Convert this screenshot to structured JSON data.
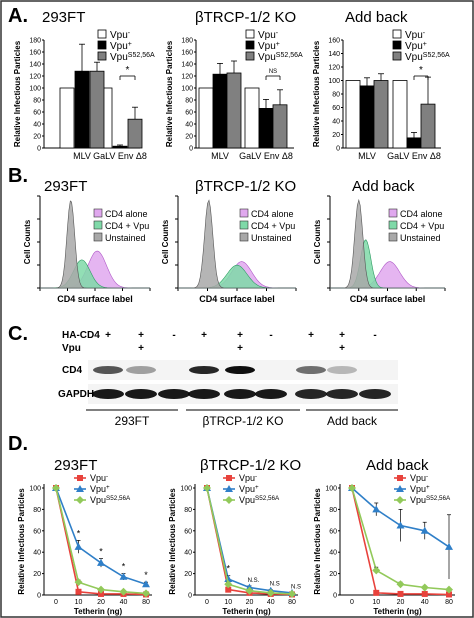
{
  "panel_labels": [
    "A.",
    "B.",
    "C.",
    "D."
  ],
  "conditions": [
    "293FT",
    "βTRCP-1/2 KO",
    "Add back"
  ],
  "colors": {
    "vpu_minus_bar": "#ffffff",
    "vpu_plus_bar": "#000000",
    "vpu_s52_bar": "#808080",
    "cd4_alone": "#e0a8ee",
    "cd4_vpu": "#7fd9a8",
    "unstained": "#a8a8a8",
    "line_vpu_minus": "#e8423c",
    "line_vpu_plus": "#2f7fc8",
    "line_vpu_s52": "#92c95a"
  },
  "blot": {
    "rows": [
      {
        "label": "HA-CD4",
        "marks": [
          "+",
          "+",
          "-",
          "+",
          "+",
          "-",
          "+",
          "+",
          "-"
        ]
      },
      {
        "label": "Vpu",
        "marks": [
          "",
          "+",
          "",
          "",
          "+",
          "",
          "",
          "+",
          ""
        ]
      }
    ],
    "band_labels": [
      "CD4",
      "GAPDH"
    ],
    "group_labels": [
      "293FT",
      "βTRCP-1/2 KO",
      "Add back"
    ],
    "cd4_intensity": [
      0.65,
      0.35,
      0.0,
      0.85,
      0.95,
      0.0,
      0.55,
      0.25,
      0.0
    ],
    "gapdh_intensity": [
      0.9,
      0.9,
      0.9,
      0.9,
      0.9,
      0.9,
      0.85,
      0.85,
      0.85
    ]
  },
  "chart_data": [
    {
      "panel": "A",
      "type": "bar",
      "title": "293FT",
      "categories": [
        "MLV",
        "GaLV Env Δ8"
      ],
      "ylabel": "Relative Infectious Particles",
      "ylim": [
        0,
        180
      ],
      "yticks": [
        0,
        20,
        40,
        60,
        80,
        100,
        120,
        140,
        160,
        180
      ],
      "series": [
        {
          "name": "Vpu-",
          "values": [
            100,
            100
          ],
          "errors": [
            0,
            0
          ]
        },
        {
          "name": "Vpu+",
          "values": [
            128,
            3
          ],
          "errors": [
            45,
            2
          ]
        },
        {
          "name": "VpuS52,56A",
          "values": [
            128,
            48
          ],
          "errors": [
            15,
            20
          ]
        }
      ],
      "significance": "*",
      "legend": [
        "Vpu-",
        "Vpu+",
        "VpuS52,56A"
      ]
    },
    {
      "panel": "A",
      "type": "bar",
      "title": "βTRCP-1/2 KO",
      "categories": [
        "MLV",
        "GaLV Env Δ8"
      ],
      "ylabel": "Relative Infectious Particles",
      "ylim": [
        0,
        180
      ],
      "yticks": [
        0,
        20,
        40,
        60,
        80,
        100,
        120,
        140,
        160,
        180
      ],
      "series": [
        {
          "name": "Vpu-",
          "values": [
            100,
            100
          ],
          "errors": [
            0,
            0
          ]
        },
        {
          "name": "Vpu+",
          "values": [
            123,
            66
          ],
          "errors": [
            18,
            15
          ]
        },
        {
          "name": "VpuS52,56A",
          "values": [
            125,
            72
          ],
          "errors": [
            20,
            25
          ]
        }
      ],
      "significance": "NS",
      "legend": [
        "Vpu-",
        "Vpu+",
        "VpuS52,56A"
      ]
    },
    {
      "panel": "A",
      "type": "bar",
      "title": "Add back",
      "categories": [
        "MLV",
        "GaLV Env Δ8"
      ],
      "ylabel": "Relative Infectious Particles",
      "ylim": [
        0,
        160
      ],
      "yticks": [
        0,
        20,
        40,
        60,
        80,
        100,
        120,
        140,
        160
      ],
      "series": [
        {
          "name": "Vpu-",
          "values": [
            100,
            100
          ],
          "errors": [
            0,
            0
          ]
        },
        {
          "name": "Vpu+",
          "values": [
            92,
            15
          ],
          "errors": [
            12,
            8
          ]
        },
        {
          "name": "VpuS52,56A",
          "values": [
            100,
            65
          ],
          "errors": [
            10,
            40
          ]
        }
      ],
      "significance": "*",
      "legend": [
        "Vpu-",
        "Vpu+",
        "VpuS52,56A"
      ]
    },
    {
      "panel": "B",
      "type": "area",
      "title": "293FT",
      "xlabel": "CD4 surface label",
      "ylabel": "Cell Counts",
      "legend": [
        "CD4 alone",
        "CD4 + Vpu",
        "Unstained"
      ],
      "peaks": [
        {
          "name": "Unstained",
          "center": 0.28,
          "width": 0.035,
          "height": 1.0
        },
        {
          "name": "CD4 + Vpu",
          "center": 0.38,
          "width": 0.075,
          "height": 0.32
        },
        {
          "name": "CD4 alone",
          "center": 0.52,
          "width": 0.085,
          "height": 0.42
        }
      ]
    },
    {
      "panel": "B",
      "type": "area",
      "title": "βTRCP-1/2 KO",
      "xlabel": "CD4 surface label",
      "ylabel": "Cell Counts",
      "legend": [
        "CD4 alone",
        "CD4 + Vpu",
        "Unstained"
      ],
      "peaks": [
        {
          "name": "Unstained",
          "center": 0.26,
          "width": 0.035,
          "height": 1.0
        },
        {
          "name": "CD4 + Vpu",
          "center": 0.5,
          "width": 0.085,
          "height": 0.26
        },
        {
          "name": "CD4 alone",
          "center": 0.54,
          "width": 0.085,
          "height": 0.3
        }
      ]
    },
    {
      "panel": "B",
      "type": "area",
      "title": "Add back",
      "xlabel": "CD4 surface label",
      "ylabel": "Cell Counts",
      "legend": [
        "CD4 alone",
        "CD4 + Vpu",
        "Unstained"
      ],
      "peaks": [
        {
          "name": "Unstained",
          "center": 0.25,
          "width": 0.035,
          "height": 1.0
        },
        {
          "name": "CD4 + Vpu",
          "center": 0.31,
          "width": 0.045,
          "height": 0.55
        },
        {
          "name": "CD4 alone",
          "center": 0.52,
          "width": 0.085,
          "height": 0.3
        }
      ]
    },
    {
      "panel": "D",
      "type": "line",
      "title": "293FT",
      "x": [
        0,
        10,
        20,
        40,
        80
      ],
      "xticks": [
        "0",
        "10",
        "20",
        "40",
        "80"
      ],
      "xlabel": "Tetherin (ng)",
      "ylabel": "Relative Infectious Particles",
      "ylim": [
        0,
        100
      ],
      "yticks": [
        0,
        20,
        40,
        60,
        80,
        100
      ],
      "series": [
        {
          "name": "Vpu-",
          "values": [
            100,
            3,
            1,
            1,
            0.5
          ],
          "errors": [
            0,
            1,
            0.5,
            0.5,
            0.3
          ]
        },
        {
          "name": "Vpu+",
          "values": [
            100,
            45,
            30,
            17,
            10
          ],
          "errors": [
            0,
            6,
            4,
            3,
            2
          ]
        },
        {
          "name": "VpuS52,56A",
          "values": [
            100,
            12,
            5,
            3,
            1.5
          ],
          "errors": [
            0,
            2,
            1,
            1,
            0.5
          ]
        }
      ],
      "annotations": [
        "*",
        "*",
        "*",
        "*"
      ],
      "legend": [
        "Vpu-",
        "Vpu+",
        "VpuS52,56A"
      ]
    },
    {
      "panel": "D",
      "type": "line",
      "title": "βTRCP-1/2 KO",
      "x": [
        0,
        10,
        20,
        40,
        80
      ],
      "xticks": [
        "0",
        "10",
        "20",
        "40",
        "80"
      ],
      "xlabel": "Tetherin (ng)",
      "ylabel": "Relative Infectious Particles",
      "ylim": [
        0,
        100
      ],
      "yticks": [
        0,
        20,
        40,
        60,
        80,
        100
      ],
      "series": [
        {
          "name": "Vpu-",
          "values": [
            100,
            5,
            2,
            1,
            0.5
          ],
          "errors": [
            0,
            1,
            0.5,
            0.5,
            0.3
          ]
        },
        {
          "name": "Vpu+",
          "values": [
            100,
            15,
            7,
            4,
            2
          ],
          "errors": [
            0,
            3,
            1.5,
            1,
            0.5
          ]
        },
        {
          "name": "VpuS52,56A",
          "values": [
            100,
            10,
            4,
            2,
            1
          ],
          "errors": [
            0,
            2,
            1,
            0.5,
            0.3
          ]
        }
      ],
      "annotations": [
        "*",
        "N.S.",
        "N.S",
        "N.S"
      ],
      "legend": [
        "Vpu-",
        "Vpu+",
        "VpuS52,56A"
      ]
    },
    {
      "panel": "D",
      "type": "line",
      "title": "Add back",
      "x": [
        0,
        10,
        20,
        40,
        80
      ],
      "xticks": [
        "0",
        "10",
        "20",
        "40",
        "80"
      ],
      "xlabel": "Tetherin (ng)",
      "ylabel": "Relative Infectious Particles",
      "ylim": [
        0,
        100
      ],
      "yticks": [
        0,
        20,
        40,
        60,
        80,
        100
      ],
      "series": [
        {
          "name": "Vpu-",
          "values": [
            100,
            2,
            1,
            1,
            0.5
          ],
          "errors": [
            0,
            1,
            0.5,
            0.5,
            0.3
          ]
        },
        {
          "name": "Vpu+",
          "values": [
            100,
            80,
            65,
            60,
            45
          ],
          "errors": [
            0,
            6,
            15,
            8,
            30
          ]
        },
        {
          "name": "VpuS52,56A",
          "values": [
            100,
            23,
            10,
            7,
            5
          ],
          "errors": [
            0,
            3,
            2,
            1.5,
            1
          ]
        }
      ],
      "legend": [
        "Vpu-",
        "Vpu+",
        "VpuS52,56A"
      ]
    }
  ]
}
